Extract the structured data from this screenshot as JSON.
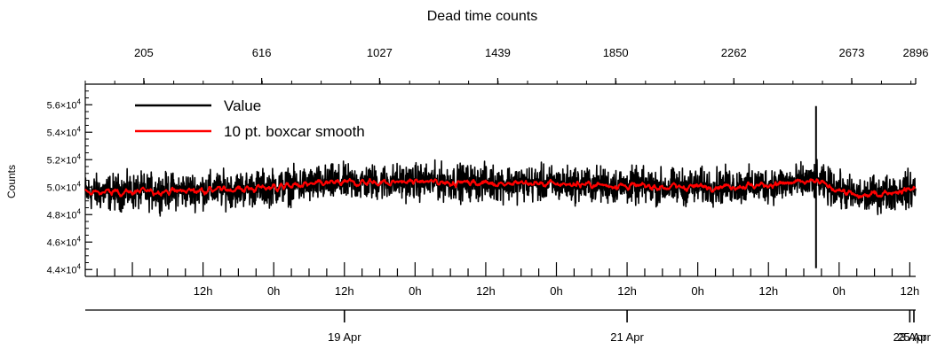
{
  "chart_data": {
    "type": "line",
    "title": "Dead time counts",
    "ylabel": "Counts",
    "ylim": [
      43500,
      57500
    ],
    "y_ticks": [
      {
        "value": 44000,
        "mant": "4.4×10",
        "exp": "4"
      },
      {
        "value": 46000,
        "mant": "4.6×10",
        "exp": "4"
      },
      {
        "value": 48000,
        "mant": "4.8×10",
        "exp": "4"
      },
      {
        "value": 50000,
        "mant": "5.0×10",
        "exp": "4"
      },
      {
        "value": 52000,
        "mant": "5.2×10",
        "exp": "4"
      },
      {
        "value": 54000,
        "mant": "5.4×10",
        "exp": "4"
      },
      {
        "value": 56000,
        "mant": "5.6×10",
        "exp": "4"
      }
    ],
    "top_axis": {
      "label_type": "point index",
      "range": [
        1,
        2896
      ],
      "ticks": [
        205,
        616,
        1027,
        1439,
        1850,
        2262,
        2673,
        2896
      ]
    },
    "time_axis": {
      "range_hours": [
        -20,
        121
      ],
      "hour_ticks": [
        {
          "h": 0,
          "label": "12h"
        },
        {
          "h": 12,
          "label": "0h"
        },
        {
          "h": 24,
          "label": "12h"
        },
        {
          "h": 36,
          "label": "0h"
        },
        {
          "h": 48,
          "label": "12h"
        },
        {
          "h": 60,
          "label": "0h"
        },
        {
          "h": 72,
          "label": "12h"
        },
        {
          "h": 84,
          "label": "0h"
        },
        {
          "h": 96,
          "label": "12h"
        },
        {
          "h": 108,
          "label": "0h"
        },
        {
          "h": 120,
          "label": "12h"
        },
        {
          "h": 132,
          "label": "0h"
        }
      ],
      "day_ticks": [
        {
          "h": 24,
          "label": "19 Apr"
        },
        {
          "h": 72,
          "label": "21 Apr"
        },
        {
          "h": 120,
          "label": "23 Apr"
        },
        {
          "h": 168,
          "label": "25 Apr"
        }
      ]
    },
    "series": [
      {
        "name": "Value",
        "color": "#000000",
        "description_points": [
          {
            "t": 0.0,
            "y": 49600
          },
          {
            "t": 0.1,
            "y": 49700
          },
          {
            "t": 0.2,
            "y": 49900
          },
          {
            "t": 0.3,
            "y": 50300
          },
          {
            "t": 0.4,
            "y": 50400
          },
          {
            "t": 0.5,
            "y": 50300
          },
          {
            "t": 0.6,
            "y": 50200
          },
          {
            "t": 0.7,
            "y": 50000
          },
          {
            "t": 0.8,
            "y": 50100
          },
          {
            "t": 0.88,
            "y": 50400
          },
          {
            "t": 0.93,
            "y": 49300
          },
          {
            "t": 1.0,
            "y": 49900
          }
        ],
        "noise_amplitude": 1400,
        "spike": {
          "t": 0.88,
          "min": 44100,
          "max": 55900
        }
      },
      {
        "name": "10 pt. boxcar smooth",
        "color": "#ff0000",
        "description_points": [
          {
            "t": 0.0,
            "y": 49600
          },
          {
            "t": 0.1,
            "y": 49700
          },
          {
            "t": 0.2,
            "y": 49900
          },
          {
            "t": 0.3,
            "y": 50300
          },
          {
            "t": 0.4,
            "y": 50400
          },
          {
            "t": 0.5,
            "y": 50300
          },
          {
            "t": 0.6,
            "y": 50200
          },
          {
            "t": 0.7,
            "y": 50000
          },
          {
            "t": 0.8,
            "y": 50100
          },
          {
            "t": 0.88,
            "y": 50400
          },
          {
            "t": 0.93,
            "y": 49300
          },
          {
            "t": 1.0,
            "y": 49900
          }
        ]
      }
    ],
    "legend_placement": "top-left",
    "grid": false
  }
}
